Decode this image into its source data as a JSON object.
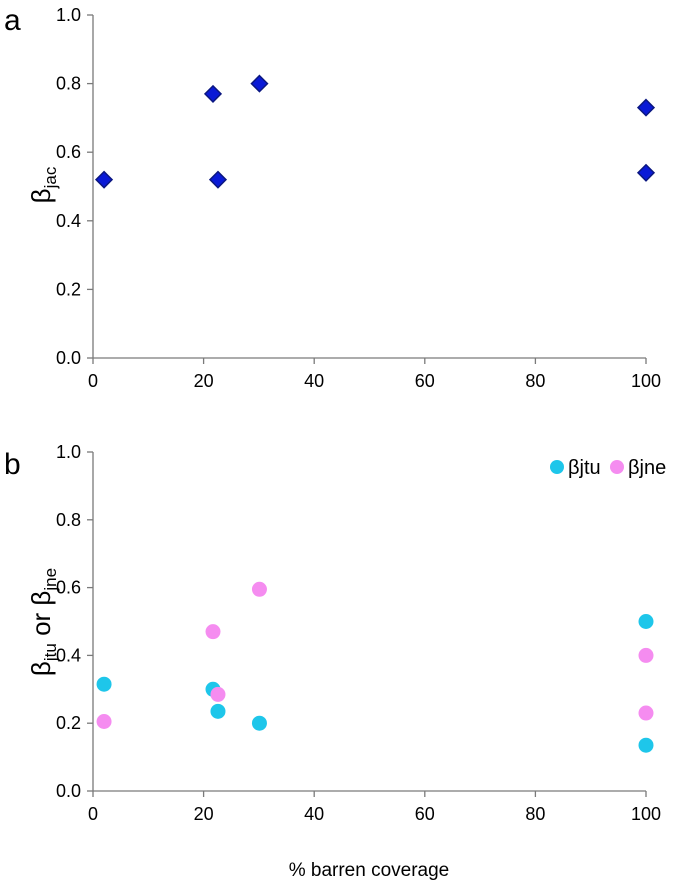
{
  "figure": {
    "xlabel": "% barren coverage"
  },
  "chart_data": [
    {
      "panel": "a",
      "type": "scatter",
      "title": "",
      "xlabel": "",
      "ylabel": {
        "main": "β",
        "sub": "jac"
      },
      "xlim": [
        0,
        100
      ],
      "ylim": [
        0,
        1.0
      ],
      "xticks": [
        "0",
        "20",
        "40",
        "60",
        "80",
        "100"
      ],
      "yticks": [
        "0.0",
        "0.2",
        "0.4",
        "0.6",
        "0.8",
        "1.0"
      ],
      "grid": false,
      "legend": "none",
      "series": [
        {
          "marker": "diamond",
          "color": "#0a1ad6",
          "edge_color": "#0b1780",
          "points": [
            {
              "x": 2,
              "y": 0.52
            },
            {
              "x": 21.7,
              "y": 0.77
            },
            {
              "x": 22.6,
              "y": 0.52
            },
            {
              "x": 30.1,
              "y": 0.8
            },
            {
              "x": 100,
              "y": 0.73
            },
            {
              "x": 100,
              "y": 0.54
            }
          ]
        }
      ]
    },
    {
      "panel": "b",
      "type": "scatter",
      "title": "",
      "xlabel": "% barren coverage",
      "ylabel": {
        "parts": [
          {
            "main": "β",
            "sub": "jtu"
          },
          {
            "main": " or β",
            "sub": "jne"
          }
        ]
      },
      "xlim": [
        0,
        100
      ],
      "ylim": [
        0,
        1.0
      ],
      "xticks": [
        "0",
        "20",
        "40",
        "60",
        "80",
        "100"
      ],
      "yticks": [
        "0.0",
        "0.2",
        "0.4",
        "0.6",
        "0.8",
        "1.0"
      ],
      "grid": false,
      "legend": "top-right",
      "series": [
        {
          "name": "βjtu",
          "marker": "circle",
          "color": "#1ec6ea",
          "points": [
            {
              "x": 2,
              "y": 0.315
            },
            {
              "x": 21.7,
              "y": 0.3
            },
            {
              "x": 22.6,
              "y": 0.235
            },
            {
              "x": 30.1,
              "y": 0.2
            },
            {
              "x": 100,
              "y": 0.5
            },
            {
              "x": 100,
              "y": 0.135
            }
          ]
        },
        {
          "name": "βjne",
          "marker": "circle",
          "color": "#f58cf0",
          "points": [
            {
              "x": 2,
              "y": 0.205
            },
            {
              "x": 21.7,
              "y": 0.47
            },
            {
              "x": 22.6,
              "y": 0.285
            },
            {
              "x": 30.1,
              "y": 0.595
            },
            {
              "x": 100,
              "y": 0.4
            },
            {
              "x": 100,
              "y": 0.23
            }
          ]
        }
      ]
    }
  ]
}
